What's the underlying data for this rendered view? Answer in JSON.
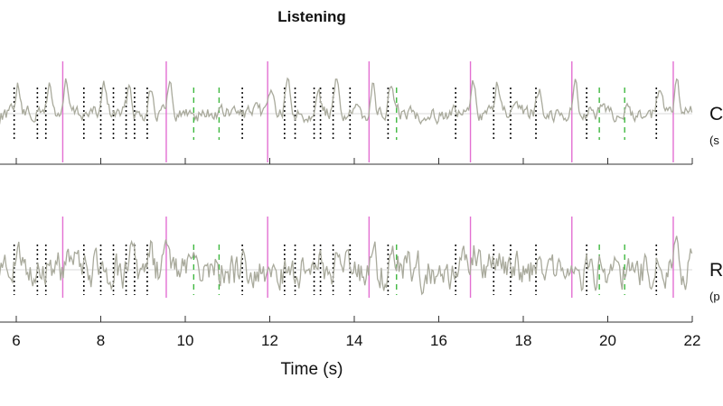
{
  "chart_data": {
    "type": "line",
    "title": "Listening",
    "xlabel": "Time (s)",
    "xlim": [
      5.4,
      22
    ],
    "xticks": [
      6,
      8,
      10,
      12,
      14,
      16,
      18,
      20,
      22
    ],
    "tick_labels": [
      "6",
      "8",
      "10",
      "12",
      "14",
      "16",
      "18",
      "20",
      "22"
    ],
    "panels": [
      {
        "name": "top",
        "label": "C",
        "sublabel": "(s",
        "trace_color": "#a9aa9c",
        "baseline_color": "#d8d8d8"
      },
      {
        "name": "bottom",
        "label": "R",
        "sublabel": "(p",
        "trace_color": "#a9aa9c",
        "baseline_color": "#d8d8d8"
      }
    ],
    "markers": {
      "pink": {
        "color": "#e36fd2",
        "style": "solid",
        "times": [
          7.1,
          9.55,
          11.95,
          14.35,
          16.75,
          19.15,
          21.55
        ]
      },
      "green": {
        "color": "#3fb83f",
        "style": "dashed",
        "times": [
          10.2,
          10.8,
          15.0,
          19.8,
          20.4
        ]
      },
      "black": {
        "color": "#111111",
        "style": "dotted",
        "times": [
          5.95,
          6.5,
          6.7,
          7.6,
          8.0,
          8.3,
          8.6,
          8.8,
          9.1,
          11.35,
          12.35,
          12.6,
          13.05,
          13.2,
          13.5,
          13.9,
          14.8,
          16.4,
          17.3,
          17.7,
          18.3,
          19.5,
          21.15
        ]
      }
    }
  }
}
